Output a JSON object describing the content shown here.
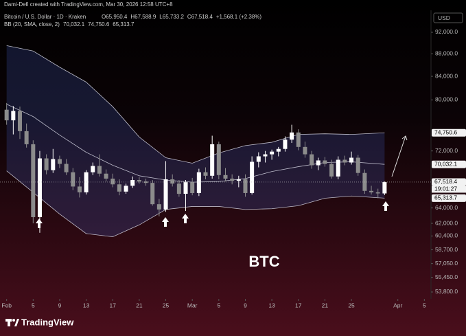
{
  "header": {
    "author_line": "Dami-Defi created with TradingView.com, Mar 30, 2026 12:58 UTC+8",
    "symbol": "Bitcoin / U.S. Dollar · 1D · Kraken",
    "ohlc": [
      "O65,950.4",
      "H67,588.9",
      "L65,733.2",
      "C67,518.4",
      "+1,568.1 (+2.38%)"
    ],
    "indicator": "BB (20, SMA, close, 2)",
    "indicator_values": [
      "70,032.1",
      "74,750.6",
      "65,313.7"
    ]
  },
  "footer": {
    "brand": "TradingView"
  },
  "chart_data": {
    "type": "candlestick",
    "annotation": "BTC",
    "currency": "USD",
    "log_scale": true,
    "up_color": "#ffffff",
    "down_color": "#8c8c8c",
    "band_color": "#d9d9e6",
    "band_fill": "#3a4fa0",
    "x": [
      "2026-02-01",
      "2026-02-02",
      "2026-02-03",
      "2026-02-04",
      "2026-02-05",
      "2026-02-06",
      "2026-02-07",
      "2026-02-08",
      "2026-02-09",
      "2026-02-10",
      "2026-02-11",
      "2026-02-12",
      "2026-02-13",
      "2026-02-14",
      "2026-02-15",
      "2026-02-16",
      "2026-02-17",
      "2026-02-18",
      "2026-02-19",
      "2026-02-20",
      "2026-02-21",
      "2026-02-22",
      "2026-02-23",
      "2026-02-24",
      "2026-02-25",
      "2026-02-26",
      "2026-02-27",
      "2026-02-28",
      "2026-03-01",
      "2026-03-02",
      "2026-03-03",
      "2026-03-04",
      "2026-03-05",
      "2026-03-06",
      "2026-03-07",
      "2026-03-08",
      "2026-03-09",
      "2026-03-10",
      "2026-03-11",
      "2026-03-12",
      "2026-03-13",
      "2026-03-14",
      "2026-03-15",
      "2026-03-16",
      "2026-03-17",
      "2026-03-18",
      "2026-03-19",
      "2026-03-20",
      "2026-03-21",
      "2026-03-22",
      "2026-03-23",
      "2026-03-24",
      "2026-03-25",
      "2026-03-26",
      "2026-03-27",
      "2026-03-28",
      "2026-03-29",
      "2026-03-30"
    ],
    "open": [
      78400,
      76700,
      78200,
      75000,
      73000,
      62800,
      70900,
      69200,
      70800,
      70100,
      68900,
      66900,
      66100,
      68900,
      69800,
      68700,
      68000,
      67200,
      66200,
      67000,
      67800,
      67600,
      67400,
      64500,
      63800,
      67900,
      67300,
      65900,
      67500,
      66000,
      68900,
      68400,
      73000,
      68500,
      68000,
      67700,
      67900,
      66000,
      70400,
      71200,
      71500,
      71900,
      72300,
      73700,
      74800,
      72600,
      71500,
      69900,
      70600,
      70100,
      68300,
      70700,
      70300,
      71000,
      68800,
      66300,
      66100,
      65950.4
    ],
    "high": [
      79500,
      79000,
      78900,
      76200,
      73600,
      72000,
      71500,
      72300,
      71300,
      70800,
      69500,
      68200,
      69200,
      70300,
      71500,
      69300,
      68700,
      67900,
      67300,
      68300,
      68200,
      68000,
      67800,
      65200,
      70500,
      68600,
      67800,
      67800,
      68100,
      69400,
      69600,
      74300,
      73400,
      69500,
      68600,
      68400,
      68600,
      71200,
      71800,
      72000,
      72200,
      72600,
      74200,
      76000,
      75300,
      73400,
      72000,
      71000,
      71100,
      70700,
      71200,
      71300,
      71900,
      71400,
      69300,
      67000,
      66600,
      67588.9
    ],
    "low": [
      76000,
      74500,
      73800,
      72500,
      62000,
      60800,
      68600,
      68800,
      69500,
      68500,
      66400,
      65400,
      65800,
      68500,
      68300,
      67600,
      66800,
      65700,
      65900,
      66700,
      67300,
      67000,
      64300,
      62900,
      63500,
      66900,
      65500,
      63600,
      65700,
      65600,
      67900,
      68000,
      67900,
      67600,
      67200,
      66800,
      65500,
      65800,
      69600,
      70300,
      70700,
      71200,
      71900,
      73200,
      72100,
      71000,
      69400,
      69200,
      69700,
      68000,
      67900,
      69900,
      70000,
      68400,
      65900,
      65800,
      65300,
      65733.2
    ],
    "close": [
      76700,
      78200,
      75000,
      73000,
      62800,
      70900,
      69200,
      70800,
      70100,
      68900,
      66900,
      66100,
      68900,
      69800,
      68700,
      68000,
      67200,
      66200,
      67000,
      67800,
      67600,
      67400,
      64500,
      63800,
      67900,
      67300,
      65900,
      67500,
      66000,
      68900,
      68400,
      73000,
      68500,
      68000,
      67700,
      67900,
      66000,
      70400,
      71200,
      71500,
      71900,
      72300,
      73700,
      74800,
      72600,
      71500,
      69900,
      70600,
      70100,
      68300,
      70700,
      70300,
      71000,
      68800,
      66300,
      66100,
      65950.4,
      67518.4
    ],
    "bands": {
      "x": [
        "2026-02-01",
        "2026-02-05",
        "2026-02-09",
        "2026-02-13",
        "2026-02-17",
        "2026-02-21",
        "2026-02-25",
        "2026-03-01",
        "2026-03-05",
        "2026-03-09",
        "2026-03-13",
        "2026-03-17",
        "2026-03-21",
        "2026-03-25",
        "2026-03-30"
      ],
      "upper": [
        89500,
        88500,
        85600,
        83000,
        78900,
        74100,
        71000,
        70200,
        71700,
        72800,
        73300,
        74500,
        74600,
        74500,
        74750.6
      ],
      "middle": [
        79300,
        77300,
        74400,
        71800,
        69900,
        68400,
        67800,
        67500,
        67600,
        68000,
        69000,
        69700,
        70300,
        70400,
        70032.1
      ],
      "lower": [
        69100,
        66100,
        63200,
        60700,
        60300,
        61800,
        63800,
        64200,
        64200,
        63800,
        63900,
        64300,
        65300,
        65600,
        65313.7
      ]
    },
    "xlim": [
      "2026-01-31",
      "2026-04-06"
    ],
    "xticks": [
      {
        "value": "2026-02-01",
        "label": "Feb"
      },
      {
        "value": "2026-02-05",
        "label": "5"
      },
      {
        "value": "2026-02-09",
        "label": "9"
      },
      {
        "value": "2026-02-13",
        "label": "13"
      },
      {
        "value": "2026-02-17",
        "label": "17"
      },
      {
        "value": "2026-02-21",
        "label": "21"
      },
      {
        "value": "2026-02-25",
        "label": "25"
      },
      {
        "value": "2026-03-01",
        "label": "Mar"
      },
      {
        "value": "2026-03-05",
        "label": "5"
      },
      {
        "value": "2026-03-09",
        "label": "9"
      },
      {
        "value": "2026-03-13",
        "label": "13"
      },
      {
        "value": "2026-03-17",
        "label": "17"
      },
      {
        "value": "2026-03-21",
        "label": "21"
      },
      {
        "value": "2026-03-25",
        "label": "25"
      },
      {
        "value": "2026-04-01",
        "label": "Apr"
      },
      {
        "value": "2026-04-05",
        "label": "5"
      }
    ],
    "ylim": [
      53040,
      96270
    ],
    "yticks": [
      {
        "value": 92000,
        "label": "92,000.0"
      },
      {
        "value": 88000,
        "label": "88,000.0"
      },
      {
        "value": 84000,
        "label": "84,000.0"
      },
      {
        "value": 80000,
        "label": "80,000.0"
      },
      {
        "value": 72000,
        "label": "72,000.0"
      },
      {
        "value": 64000,
        "label": "64,000.0"
      },
      {
        "value": 62000,
        "label": "62,000.0"
      },
      {
        "value": 60400,
        "label": "60,400.0"
      },
      {
        "value": 58700,
        "label": "58,700.0"
      },
      {
        "value": 57050,
        "label": "57,050.0"
      },
      {
        "value": 55450,
        "label": "55,450.0"
      },
      {
        "value": 53800,
        "label": "53,800.0"
      }
    ],
    "price_labels": [
      {
        "value": 74750.6,
        "label": "74,750.6"
      },
      {
        "value": 70032.1,
        "label": "70,032.1"
      },
      {
        "value": 67518.4,
        "label": "67,518.4"
      },
      {
        "value": 65313.7,
        "label": "65,313.7"
      }
    ],
    "countdown": "19:01:27"
  }
}
